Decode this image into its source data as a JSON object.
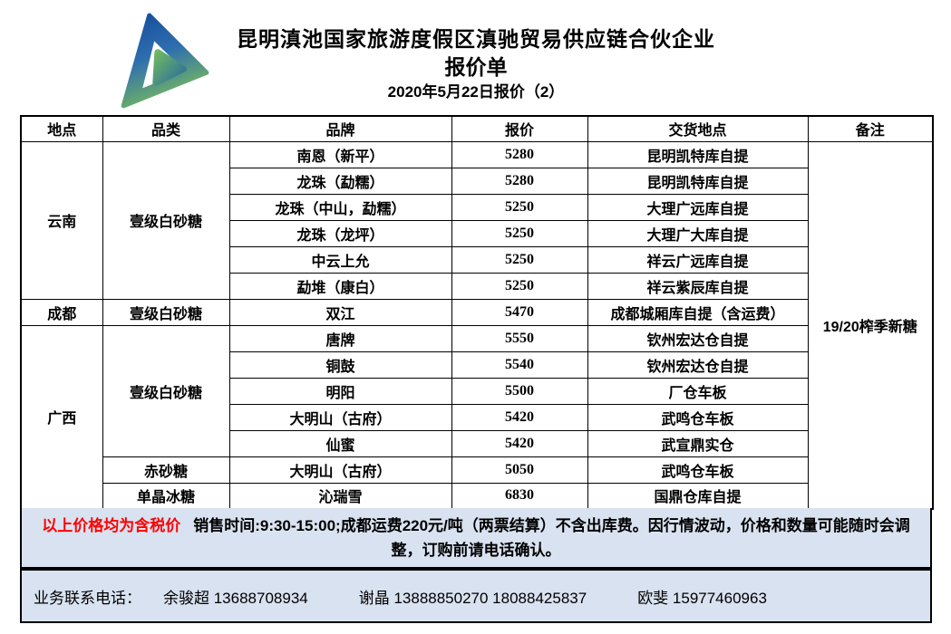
{
  "header": {
    "company": "昆明滇池国家旅游度假区滇驰贸易供应链合伙企业",
    "doc_title": "报价单",
    "date_line": "2020年5月22日报价（2）"
  },
  "table": {
    "columns": [
      "地点",
      "品类",
      "品牌",
      "报价",
      "交货地点",
      "备注"
    ],
    "remark": "19/20榨季新糖",
    "groups": [
      {
        "location": "云南",
        "sections": [
          {
            "category": "壹级白砂糖",
            "rows": [
              {
                "brand": "南恩（新平）",
                "price": "5280",
                "delivery": "昆明凯特库自提"
              },
              {
                "brand": "龙珠（勐糯）",
                "price": "5280",
                "delivery": "昆明凯特库自提"
              },
              {
                "brand": "龙珠（中山，勐糯）",
                "price": "5250",
                "delivery": "大理广远库自提"
              },
              {
                "brand": "龙珠（龙坪）",
                "price": "5250",
                "delivery": "大理广大库自提"
              },
              {
                "brand": "中云上允",
                "price": "5250",
                "delivery": "祥云广远库自提"
              },
              {
                "brand": "勐堆（康白）",
                "price": "5250",
                "delivery": "祥云紫辰库自提"
              }
            ]
          }
        ]
      },
      {
        "location": "成都",
        "sections": [
          {
            "category": "壹级白砂糖",
            "rows": [
              {
                "brand": "双江",
                "price": "5470",
                "delivery": "成都城厢库自提（含运费）"
              }
            ]
          }
        ]
      },
      {
        "location": "广西",
        "sections": [
          {
            "category": "壹级白砂糖",
            "rows": [
              {
                "brand": "唐牌",
                "price": "5550",
                "delivery": "钦州宏达仓自提"
              },
              {
                "brand": "铜鼓",
                "price": "5540",
                "delivery": "钦州宏达仓自提"
              },
              {
                "brand": "明阳",
                "price": "5500",
                "delivery": "厂仓车板"
              },
              {
                "brand": "大明山（古府）",
                "price": "5420",
                "delivery": "武鸣仓车板"
              },
              {
                "brand": "仙蜜",
                "price": "5420",
                "delivery": "武宣鼎实仓"
              }
            ]
          },
          {
            "category": "赤砂糖",
            "rows": [
              {
                "brand": "大明山（古府）",
                "price": "5050",
                "delivery": "武鸣仓车板"
              }
            ]
          },
          {
            "category": "单晶冰糖",
            "rows": [
              {
                "brand": "沁瑞雪",
                "price": "6830",
                "delivery": "国鼎仓库自提"
              }
            ]
          }
        ]
      }
    ]
  },
  "notes": {
    "tax_note": "以上价格均为含税价",
    "sales_note": "销售时间:9:30-15:00;成都运费220元/吨（两票结算）不含出库费。因行情波动，价格和数量可能随时会调整，订购前请电话确认。"
  },
  "contacts": {
    "label": "业务联系电话：",
    "people": [
      {
        "name": "余骏超",
        "phones": "13688708934"
      },
      {
        "name": "谢晶",
        "phones": "13888850270 18088425837"
      },
      {
        "name": "欧斐",
        "phones": "15977460963"
      }
    ]
  },
  "colors": {
    "band_background": "#d9e2f0",
    "tax_note_red": "#ff0000",
    "logo_blue": "#1d5fae",
    "logo_green": "#7cbf57"
  }
}
